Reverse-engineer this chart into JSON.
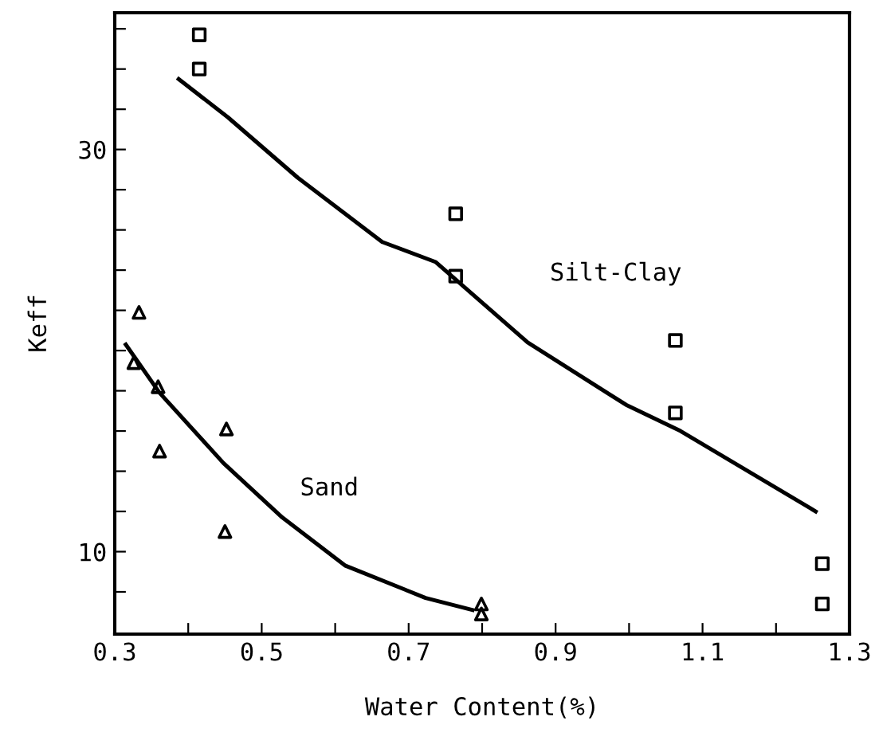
{
  "chart_data": {
    "type": "scatter",
    "xlabel": "Water Content(%)",
    "ylabel": "Keff",
    "xlim": [
      0.3,
      1.3
    ],
    "xticks": [
      0.3,
      {
        "value": 0.4,
        "label": null
      },
      0.5,
      {
        "value": 0.6,
        "label": null
      },
      0.7,
      {
        "value": 0.8,
        "label": null
      },
      0.9,
      {
        "value": 1.0,
        "label": null
      },
      1.1,
      {
        "value": 1.2,
        "label": null
      },
      1.3
    ],
    "ylim": [
      5.9,
      36.8
    ],
    "yticks": [
      {
        "value": 8,
        "label": null
      },
      10,
      {
        "value": 12,
        "label": null
      },
      {
        "value": 14,
        "label": null
      },
      {
        "value": 16,
        "label": null
      },
      {
        "value": 18,
        "label": null
      },
      {
        "value": 20,
        "label": null
      },
      {
        "value": 22,
        "label": null
      },
      {
        "value": 24,
        "label": null
      },
      {
        "value": 26,
        "label": null
      },
      {
        "value": 28,
        "label": null
      },
      30,
      {
        "value": 32,
        "label": null
      },
      {
        "value": 34,
        "label": null
      },
      {
        "value": 36,
        "label": null
      }
    ],
    "grid": false,
    "legend": false,
    "series": [
      {
        "marker": "square",
        "color": "#000000",
        "x": [
          0.415,
          0.415,
          0.764,
          0.764,
          1.063,
          1.063,
          1.263,
          1.263
        ],
        "values": [
          35.7,
          34.0,
          26.8,
          23.7,
          20.5,
          16.9,
          9.4,
          7.4
        ]
      },
      {
        "marker": "triangle",
        "color": "#000000",
        "x": [
          0.333,
          0.326,
          0.359,
          0.361,
          0.452,
          0.45,
          0.799,
          0.799
        ],
        "values": [
          21.9,
          19.4,
          18.2,
          15.0,
          16.1,
          11.0,
          7.4,
          6.9
        ]
      },
      {
        "type": "line",
        "name": "Silt-Clay",
        "color": "#000000",
        "line_style": "solid",
        "marker": "none",
        "x": [
          0.387,
          0.454,
          0.549,
          0.664,
          0.737,
          0.862,
          0.996,
          1.07,
          1.254
        ],
        "values": [
          33.5,
          31.6,
          28.6,
          25.4,
          24.4,
          20.4,
          17.3,
          16.0,
          12.0
        ]
      },
      {
        "type": "line",
        "name": "Sand",
        "color": "#000000",
        "line_style": "solid",
        "marker": "none",
        "x": [
          0.315,
          0.361,
          0.448,
          0.528,
          0.614,
          0.723,
          0.787
        ],
        "values": [
          20.3,
          17.9,
          14.4,
          11.7,
          9.3,
          7.7,
          7.1
        ]
      }
    ]
  }
}
